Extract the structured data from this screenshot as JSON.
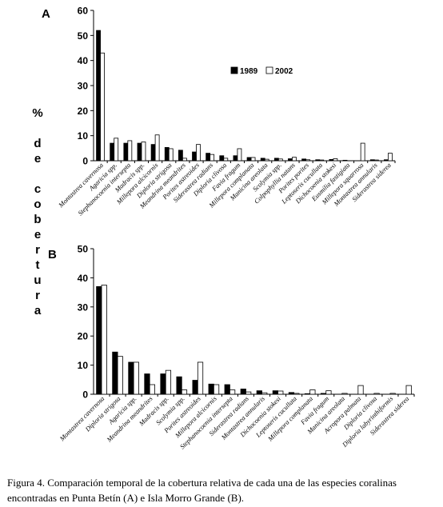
{
  "ylabel_letters": [
    "%",
    "",
    "d",
    "e",
    "",
    "c",
    "o",
    "b",
    "e",
    "r",
    "t",
    "u",
    "r",
    "a"
  ],
  "caption": {
    "line1": "Figura 4. Comparación temporal de la cobertura relativa de cada una de las especies coralinas",
    "line2": "encontradas en Punta Betín (A) e Isla Morro Grande (B)."
  },
  "colors": {
    "series_1989": "#000000",
    "series_2002": "#ffffff",
    "axis": "#000000"
  },
  "chart_data": [
    {
      "type": "bar",
      "panel_label": "A",
      "ylim": [
        0,
        60
      ],
      "yticks": [
        0,
        10,
        20,
        30,
        40,
        50,
        60
      ],
      "legend_position": "top-right",
      "categories": [
        "Montastrea cavernosa",
        "Agaricia spp.",
        "Stephanocoenia intersepta",
        "Madracis spp.",
        "Millepora alcicornis",
        "Diploria strigosa",
        "Meandrina meandrites",
        "Porites astreoides",
        "Siderastrea radians",
        "Diploria clivosa",
        "Favia fragum",
        "Millepora complanata",
        "Manicina areolata",
        "Scolymia spp.",
        "Colpophyllia natans",
        "Porites porites",
        "Leptoseris cucullata",
        "Dichocoenia stokesi",
        "Eusmilia fastigiata",
        "Millepora squarrosa",
        "Montastrea annularis",
        "Siderastrea siderea"
      ],
      "series": [
        {
          "name": "1989",
          "values": [
            52,
            7,
            7,
            7,
            6.5,
            5.3,
            4.2,
            3.5,
            3,
            2,
            2,
            1.3,
            1,
            1,
            0.8,
            0.7,
            0.4,
            0.5,
            0.2,
            0,
            0.4,
            0.4
          ]
        },
        {
          "name": "2002",
          "values": [
            43,
            9,
            8,
            7.5,
            10.3,
            4.8,
            1,
            6.5,
            2.5,
            1,
            4.8,
            1.3,
            0.6,
            0.7,
            1.4,
            0.4,
            0.3,
            0.8,
            0,
            7,
            0.3,
            3
          ]
        }
      ]
    },
    {
      "type": "bar",
      "panel_label": "B",
      "ylim": [
        0,
        50
      ],
      "yticks": [
        0,
        10,
        20,
        30,
        40,
        50
      ],
      "categories": [
        "Montastrea cavernosa",
        "Diploria strigosa",
        "Agaricia spp.",
        "Meandrina meandrites",
        "Madracis spp.",
        "Scolymia spp.",
        "Porites astreoides",
        "Millepora alcicornis",
        "Stephanocoenia intersepta",
        "Siderastrea radians",
        "Montastrea annularis",
        "Dichocoenia stokesi",
        "Leptoseris cucullata",
        "Millepora complanata",
        "Favia fragum",
        "Manicina areolata",
        "Acropora palmata",
        "Diploria clivosa",
        "Diploria labyrinthiformis",
        "Siderastrea siderea"
      ],
      "series": [
        {
          "name": "1989",
          "values": [
            37,
            14.5,
            11,
            7,
            7,
            6,
            4.8,
            3.5,
            3.3,
            1.8,
            1.2,
            1.2,
            0.6,
            0.2,
            0.3,
            0,
            0,
            0,
            0,
            0
          ]
        },
        {
          "name": "2002",
          "values": [
            37.5,
            13,
            11,
            3.3,
            8.2,
            1.5,
            11,
            3.3,
            1.5,
            0.8,
            0.5,
            1.1,
            0.3,
            1.5,
            1.2,
            0.3,
            3,
            0.3,
            0.3,
            3
          ]
        }
      ]
    }
  ]
}
